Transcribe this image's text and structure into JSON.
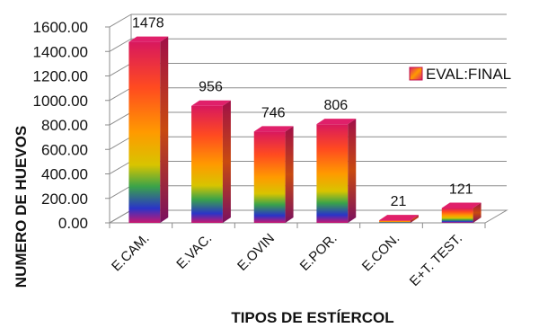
{
  "chart_data": {
    "type": "bar",
    "title": "",
    "xlabel": "TIPOS DE ESTÍERCOL",
    "ylabel": "NUMERO DE HUEVOS",
    "categories": [
      "E.CAM.",
      "E.VAC.",
      "E.OVIN",
      "E.POR.",
      "E.CON.",
      "E+T. TEST."
    ],
    "series": [
      {
        "name": "EVAL:FINAL",
        "values": [
          1478,
          956,
          746,
          806,
          21,
          121
        ]
      }
    ],
    "data_labels": [
      "1478",
      "956",
      "746",
      "806",
      "21",
      "121"
    ],
    "y_ticks": [
      "0.00",
      "200.00",
      "400.00",
      "600.00",
      "800.00",
      "1000.00",
      "1200.00",
      "1400.00",
      "1600.00"
    ],
    "ylim": [
      0,
      1600
    ],
    "grid": true,
    "style": "3d-column",
    "legend": "right",
    "colors": {
      "bar_top": "#e0206a",
      "bar_mid": "#ff9a00",
      "bar_low": "#2a34c8",
      "grid": "#8c8c8c"
    }
  }
}
